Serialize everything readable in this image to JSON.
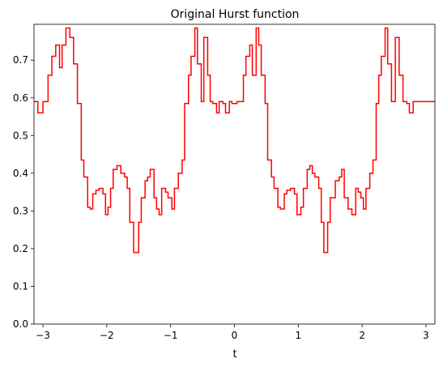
{
  "chart_data": {
    "type": "line",
    "title": "Original Hurst function",
    "xlabel": "t",
    "ylabel": "",
    "xlim": [
      -3.14,
      3.14
    ],
    "ylim": [
      0,
      0.795
    ],
    "xticks": [
      -3,
      -2,
      -1,
      0,
      1,
      2,
      3
    ],
    "xtick_labels": [
      "−3",
      "−2",
      "−1",
      "0",
      "1",
      "2",
      "3"
    ],
    "yticks": [
      0.0,
      0.1,
      0.2,
      0.3,
      0.4,
      0.5,
      0.6,
      0.7
    ],
    "ytick_labels": [
      "0.0",
      "0.1",
      "0.2",
      "0.3",
      "0.4",
      "0.5",
      "0.6",
      "0.7"
    ],
    "grid": false,
    "line_color": "#ff0000",
    "step": "post",
    "series": [
      {
        "x": [
          -3.14,
          -3.08,
          -3.0,
          -2.92,
          -2.86,
          -2.8,
          -2.74,
          -2.7,
          -2.64,
          -2.58,
          -2.52,
          -2.46,
          -2.4,
          -2.36,
          -2.3,
          -2.26,
          -2.22,
          -2.17,
          -2.12,
          -2.06,
          -2.02,
          -1.98,
          -1.94,
          -1.9,
          -1.84,
          -1.78,
          -1.72,
          -1.68,
          -1.64,
          -1.58,
          -1.5,
          -1.46,
          -1.4,
          -1.36,
          -1.32,
          -1.26,
          -1.22,
          -1.18,
          -1.14,
          -1.08,
          -1.04,
          -0.98,
          -0.94,
          -0.88,
          -0.82,
          -0.78,
          -0.72,
          -0.68,
          -0.62,
          -0.58,
          -0.52,
          -0.48,
          -0.42,
          -0.38,
          -0.34,
          -0.28,
          -0.24,
          -0.18,
          -0.14,
          -0.08,
          -0.04,
          0.04,
          0.08,
          0.14,
          0.18,
          0.24,
          0.28,
          0.34,
          0.38,
          0.42,
          0.48,
          0.52,
          0.58,
          0.62,
          0.68,
          0.72,
          0.78,
          0.82,
          0.88,
          0.94,
          0.98,
          1.04,
          1.08,
          1.14,
          1.18,
          1.22,
          1.26,
          1.32,
          1.36,
          1.4,
          1.46,
          1.5,
          1.58,
          1.64,
          1.68,
          1.72,
          1.78,
          1.84,
          1.9,
          1.94,
          1.98,
          2.02,
          2.06,
          2.12,
          2.17,
          2.22,
          2.26,
          2.3,
          2.36,
          2.4,
          2.46,
          2.52,
          2.58,
          2.64,
          2.7,
          2.74,
          2.8,
          2.86,
          2.92,
          3.0,
          3.08,
          3.14
        ],
        "y": [
          0.59,
          0.56,
          0.59,
          0.66,
          0.71,
          0.74,
          0.68,
          0.74,
          0.785,
          0.76,
          0.69,
          0.585,
          0.435,
          0.39,
          0.31,
          0.305,
          0.345,
          0.355,
          0.36,
          0.345,
          0.29,
          0.31,
          0.36,
          0.41,
          0.42,
          0.4,
          0.39,
          0.36,
          0.27,
          0.19,
          0.27,
          0.335,
          0.38,
          0.39,
          0.41,
          0.335,
          0.305,
          0.29,
          0.36,
          0.35,
          0.335,
          0.305,
          0.36,
          0.4,
          0.435,
          0.585,
          0.66,
          0.71,
          0.785,
          0.69,
          0.59,
          0.76,
          0.66,
          0.59,
          0.585,
          0.56,
          0.59,
          0.585,
          0.56,
          0.59,
          0.585,
          0.59,
          0.59,
          0.66,
          0.71,
          0.74,
          0.66,
          0.785,
          0.74,
          0.66,
          0.585,
          0.435,
          0.39,
          0.36,
          0.31,
          0.305,
          0.345,
          0.355,
          0.36,
          0.345,
          0.29,
          0.31,
          0.36,
          0.41,
          0.42,
          0.4,
          0.39,
          0.36,
          0.27,
          0.19,
          0.27,
          0.335,
          0.38,
          0.39,
          0.41,
          0.335,
          0.305,
          0.29,
          0.36,
          0.35,
          0.335,
          0.305,
          0.36,
          0.4,
          0.435,
          0.585,
          0.66,
          0.71,
          0.785,
          0.69,
          0.59,
          0.76,
          0.66,
          0.59,
          0.585,
          0.56,
          0.59,
          0.59,
          0.59,
          0.59,
          0.59,
          0.59
        ]
      }
    ]
  }
}
